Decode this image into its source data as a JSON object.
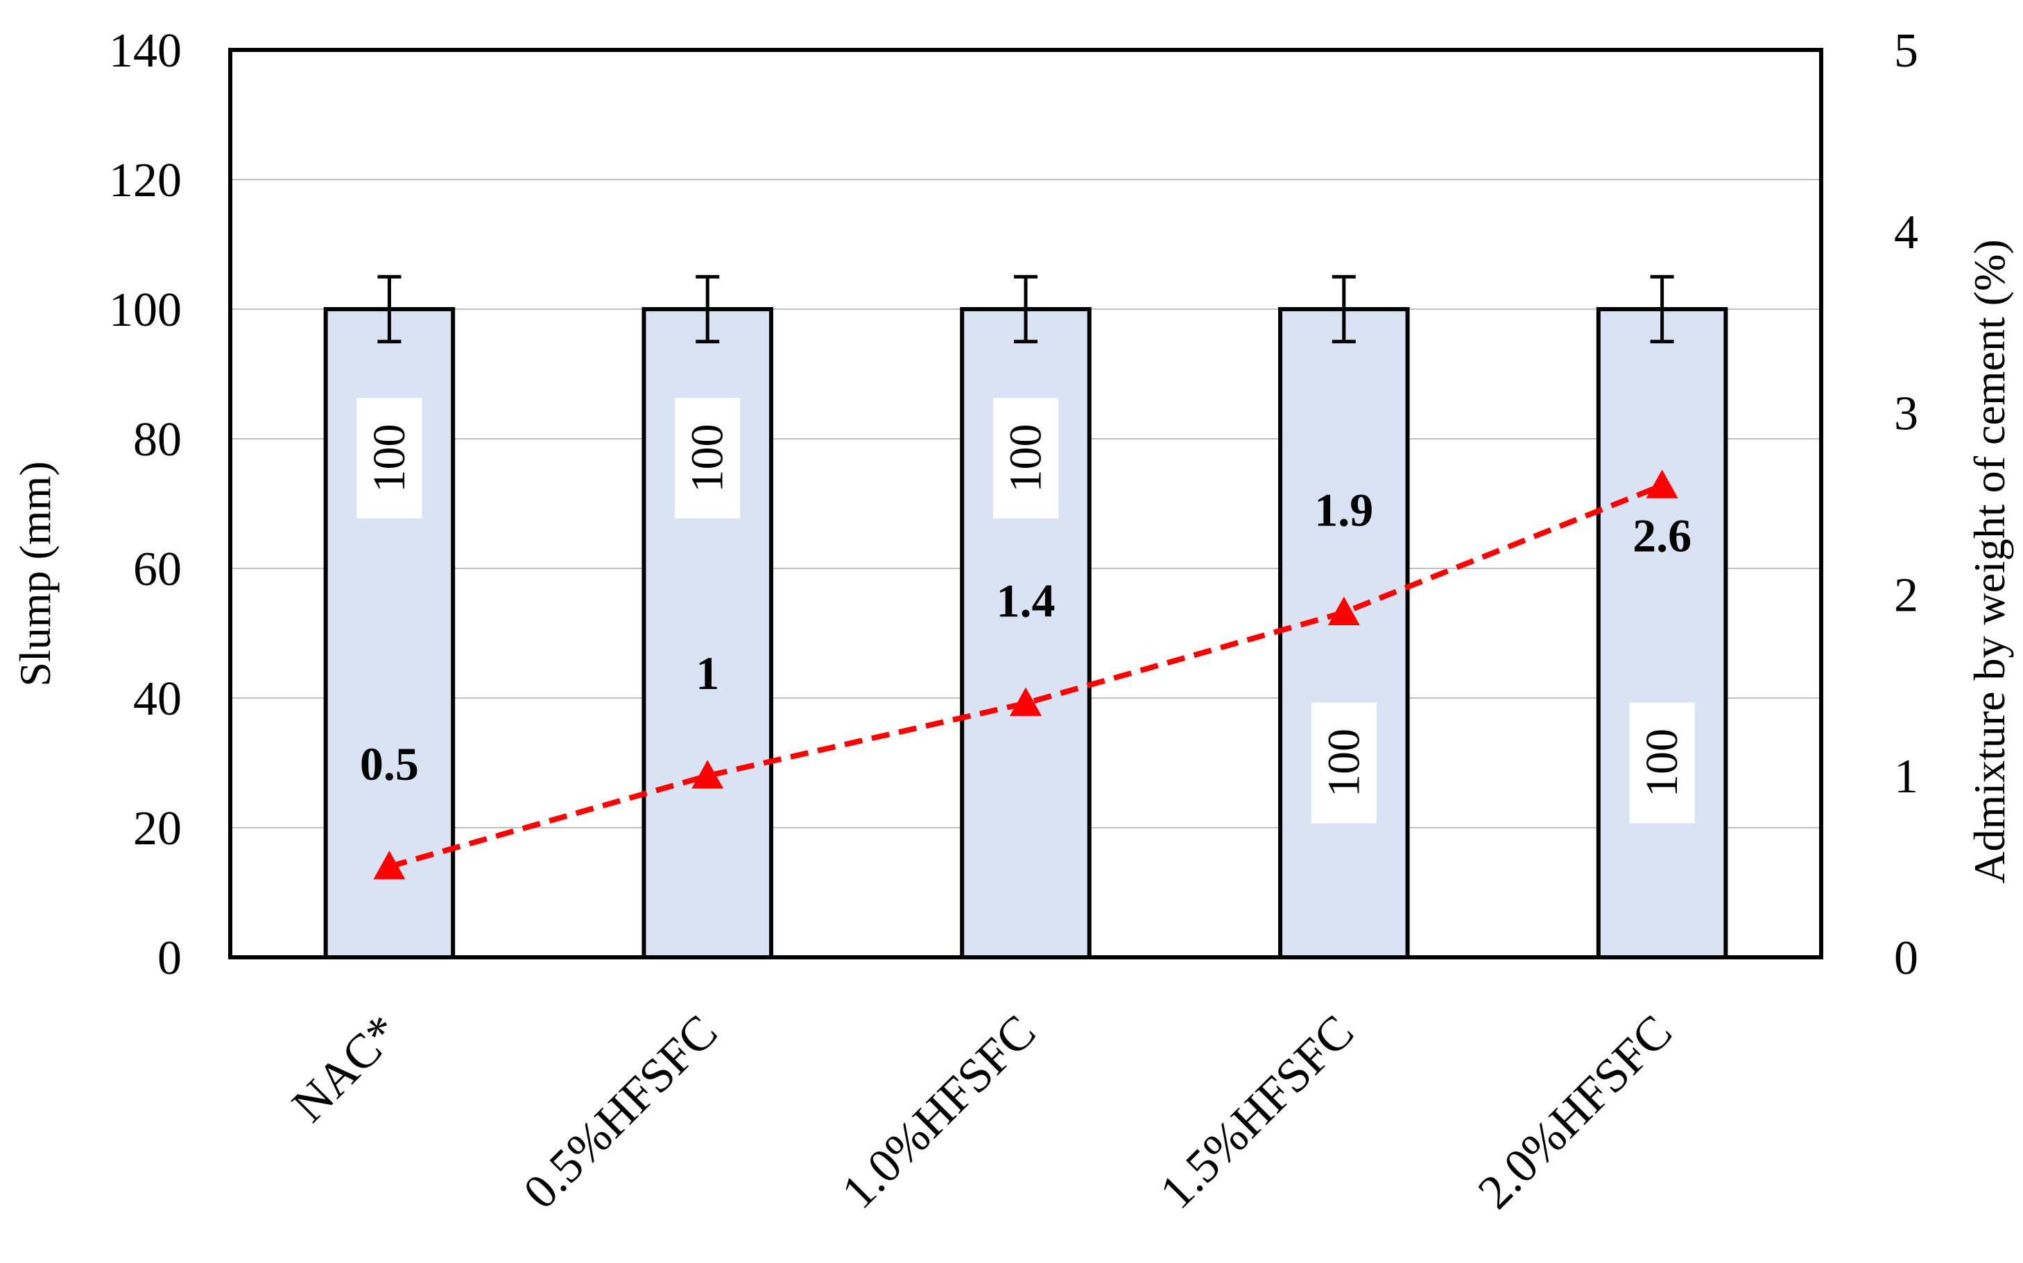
{
  "chart_data": {
    "type": "bar",
    "categories": [
      "NAC*",
      "0.5%HFSFC",
      "1.0%HFSFC",
      "1.5%HFSFC",
      "2.0%HFSFC"
    ],
    "series": [
      {
        "type": "bar",
        "axis": "left",
        "values": [
          100,
          100,
          100,
          100,
          100
        ],
        "error": [
          5,
          5,
          5,
          5,
          5
        ],
        "data_labels": [
          "100",
          "100",
          "100",
          "100",
          "100"
        ],
        "color": "#dae3f3",
        "edge_color": "#000000"
      },
      {
        "type": "line",
        "axis": "right",
        "values": [
          0.5,
          1,
          1.4,
          1.9,
          2.6
        ],
        "data_labels": [
          "0.5",
          "1",
          "1.4",
          "1.9",
          "2.6"
        ],
        "color": "#ff0000",
        "line_style": "dashed",
        "marker": "triangle"
      }
    ],
    "ylabel": "Slump (mm)",
    "ylim": [
      0,
      140
    ],
    "yticks": [
      "0",
      "20",
      "40",
      "60",
      "80",
      "100",
      "120",
      "140"
    ],
    "y2label": "Admixture by weight of cement (%)",
    "y2lim": [
      0,
      5
    ],
    "y2ticks": [
      "0",
      "1",
      "2",
      "3",
      "4",
      "5"
    ],
    "grid": true
  }
}
